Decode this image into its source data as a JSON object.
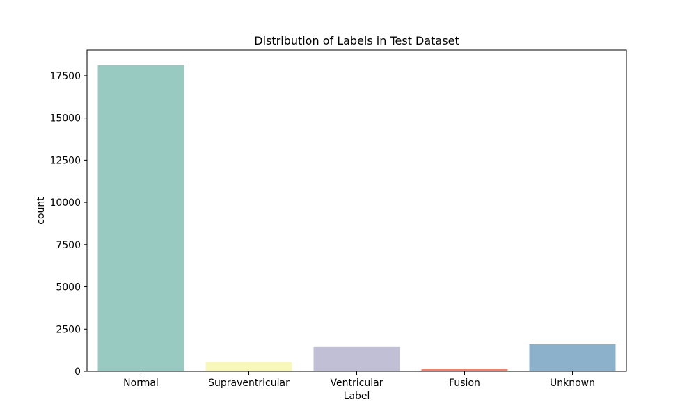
{
  "chart_data": {
    "type": "bar",
    "title": "Distribution of Labels in Test Dataset",
    "xlabel": "Label",
    "ylabel": "count",
    "categories": [
      "Normal",
      "Supraventricular",
      "Ventricular",
      "Fusion",
      "Unknown"
    ],
    "values": [
      18118,
      556,
      1448,
      162,
      1608
    ],
    "colors": [
      "#99cac1",
      "#f8f8ba",
      "#c1bfd6",
      "#e48876",
      "#8cb1ca"
    ],
    "ylim": [
      0,
      19020
    ],
    "yticks": [
      0,
      2500,
      5000,
      7500,
      10000,
      12500,
      15000,
      17500
    ],
    "ytick_labels": [
      "0",
      "2500",
      "5000",
      "7500",
      "10000",
      "12500",
      "15000",
      "17500"
    ],
    "grid": false,
    "legend": "none"
  }
}
